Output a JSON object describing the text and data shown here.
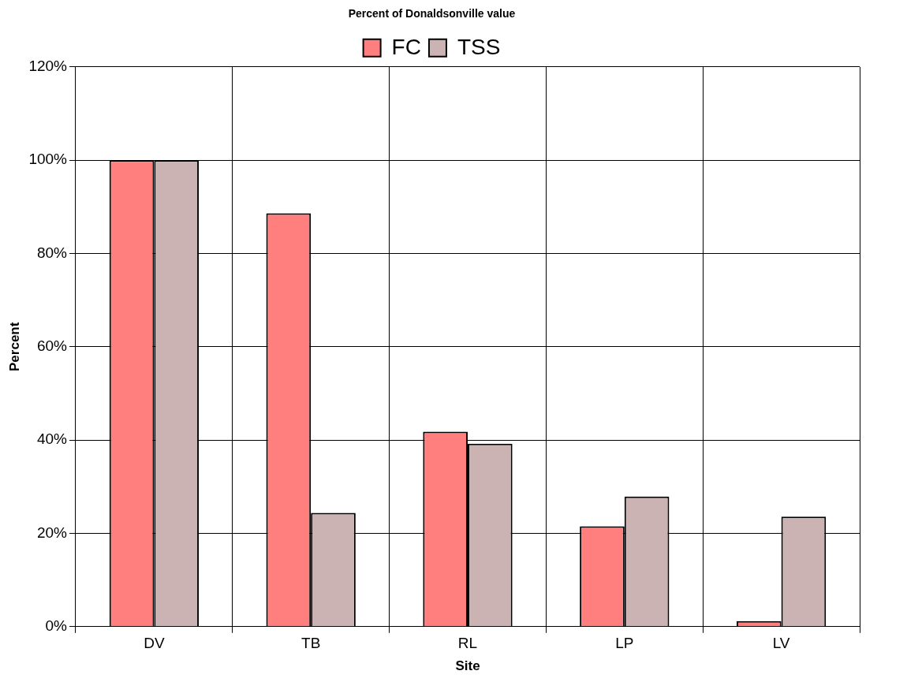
{
  "chart_data": {
    "type": "bar",
    "title": "Percent of Donaldsonville value",
    "xlabel": "Site",
    "ylabel": "Percent",
    "categories": [
      "DV",
      "TB",
      "RL",
      "LP",
      "LV"
    ],
    "series": [
      {
        "name": "FC",
        "color": "#ff7f7f",
        "values": [
          100,
          88.6,
          41.8,
          21.5,
          1.2
        ]
      },
      {
        "name": "TSS",
        "color": "#ccb3b3",
        "values": [
          100,
          24.4,
          39.2,
          27.9,
          23.6
        ]
      }
    ],
    "ylim": [
      0,
      120
    ],
    "yticks": [
      {
        "value": 0,
        "label": "0%"
      },
      {
        "value": 20,
        "label": "20%"
      },
      {
        "value": 40,
        "label": "40%"
      },
      {
        "value": 60,
        "label": "60%"
      },
      {
        "value": 80,
        "label": "80%"
      },
      {
        "value": 100,
        "label": "100%"
      },
      {
        "value": 120,
        "label": "120%"
      }
    ],
    "grid": true,
    "legend": "top"
  }
}
